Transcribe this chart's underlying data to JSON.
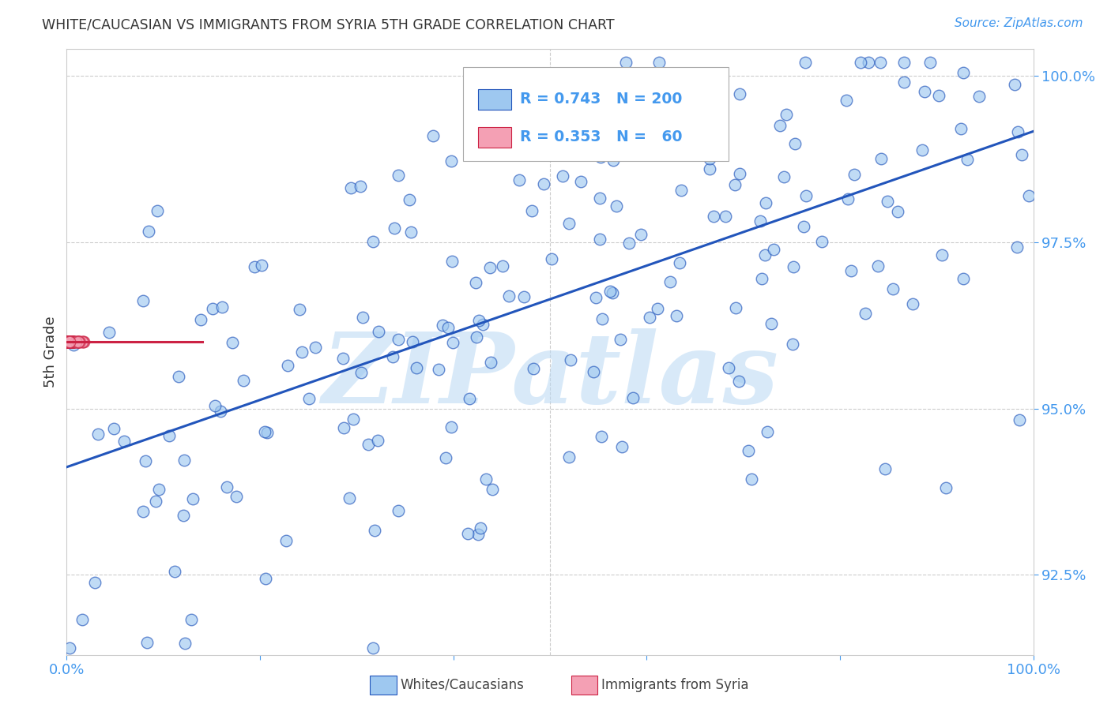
{
  "title": "WHITE/CAUCASIAN VS IMMIGRANTS FROM SYRIA 5TH GRADE CORRELATION CHART",
  "source": "Source: ZipAtlas.com",
  "ylabel": "5th Grade",
  "xlim": [
    0.0,
    1.0
  ],
  "ylim": [
    0.913,
    1.004
  ],
  "yticks": [
    0.925,
    0.95,
    0.975,
    1.0
  ],
  "ytick_labels": [
    "92.5%",
    "95.0%",
    "97.5%",
    "100.0%"
  ],
  "xticks": [
    0.0,
    0.2,
    0.4,
    0.6,
    0.8,
    1.0
  ],
  "xtick_labels": [
    "0.0%",
    "",
    "",
    "",
    "",
    "100.0%"
  ],
  "blue_color": "#9ec8f0",
  "pink_color": "#f4a0b4",
  "line_blue": "#2255bb",
  "line_pink": "#cc2244",
  "legend_R_blue": "0.743",
  "legend_N_blue": "200",
  "legend_R_pink": "0.353",
  "legend_N_pink": "60",
  "watermark": "ZIPatlas",
  "title_color": "#333333",
  "axis_color": "#4499ee",
  "grid_color": "#cccccc",
  "N_blue": 200,
  "N_pink": 60,
  "R_blue": 0.743,
  "R_pink": 0.353
}
